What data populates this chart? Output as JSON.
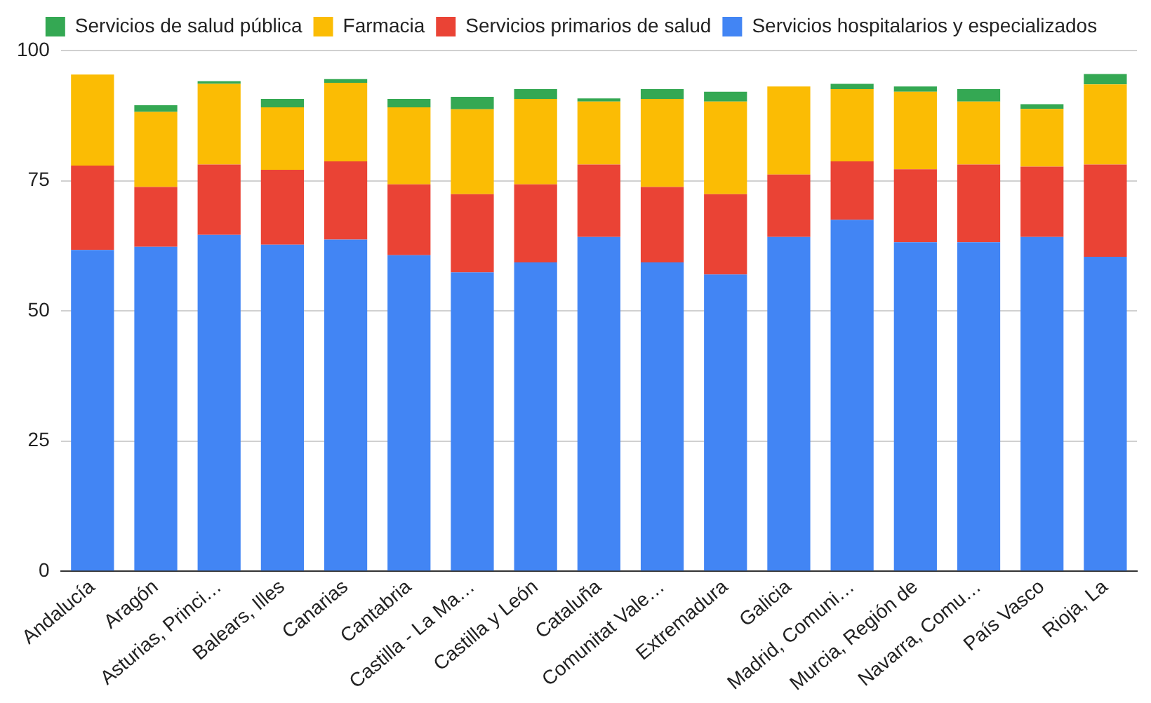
{
  "chart_data": {
    "type": "bar",
    "stacked": true,
    "legend": "top",
    "grid": "y",
    "categories": [
      "Andalucía",
      "Aragón",
      "Asturias, Princi…",
      "Balears, Illes",
      "Canarias",
      "Cantabria",
      "Castilla - La Ma…",
      "Castilla y León",
      "Cataluña",
      "Comunitat Vale…",
      "Extremadura",
      "Galicia",
      "Madrid, Comuni…",
      "Murcia, Región de",
      "Navarra, Comu…",
      "País Vasco",
      "Rioja, La"
    ],
    "ylim": [
      0,
      100
    ],
    "yticks": [
      0,
      25,
      50,
      75,
      100
    ],
    "series": [
      {
        "name": "Servicios hospitalarios y especializados",
        "color": "#4285f4",
        "values": [
          61.7,
          62.3,
          64.6,
          62.7,
          63.7,
          60.7,
          57.4,
          59.3,
          64.2,
          59.3,
          57.0,
          64.2,
          67.5,
          63.2,
          63.2,
          64.2,
          60.4
        ]
      },
      {
        "name": "Servicios primarios de salud",
        "color": "#ea4335",
        "values": [
          16.2,
          11.5,
          13.5,
          14.4,
          15.0,
          13.6,
          15.0,
          15.0,
          13.9,
          14.5,
          15.4,
          12.0,
          11.2,
          14.0,
          14.9,
          13.5,
          17.7
        ]
      },
      {
        "name": "Farmacia",
        "color": "#fbbc04",
        "values": [
          17.5,
          14.4,
          15.5,
          12.0,
          15.1,
          14.8,
          16.3,
          16.4,
          12.1,
          16.9,
          17.8,
          16.9,
          13.9,
          14.9,
          12.1,
          11.1,
          15.4
        ]
      },
      {
        "name": "Servicios de salud pública",
        "color": "#34a853",
        "values": [
          0,
          1.3,
          0.5,
          1.6,
          0.7,
          1.6,
          2.4,
          1.9,
          0.6,
          1.9,
          1.9,
          0,
          1.0,
          1.0,
          2.4,
          0.9,
          2.0
        ]
      }
    ]
  }
}
